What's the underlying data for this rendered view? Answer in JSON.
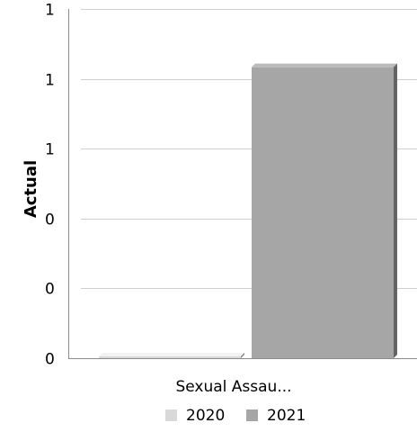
{
  "chart_data": {
    "type": "bar",
    "categories": [
      "Sexual Assau..."
    ],
    "series": [
      {
        "name": "2020",
        "values": [
          0
        ],
        "color": "#d9d9d9"
      },
      {
        "name": "2021",
        "values": [
          1
        ],
        "color": "#a6a6a6"
      }
    ],
    "ylabel": "Actual",
    "y_tick_labels": [
      "0",
      "0",
      "0",
      "1",
      "1",
      "1"
    ],
    "ylim": [
      0,
      1.2
    ],
    "grid": true,
    "legend_position": "bottom"
  }
}
